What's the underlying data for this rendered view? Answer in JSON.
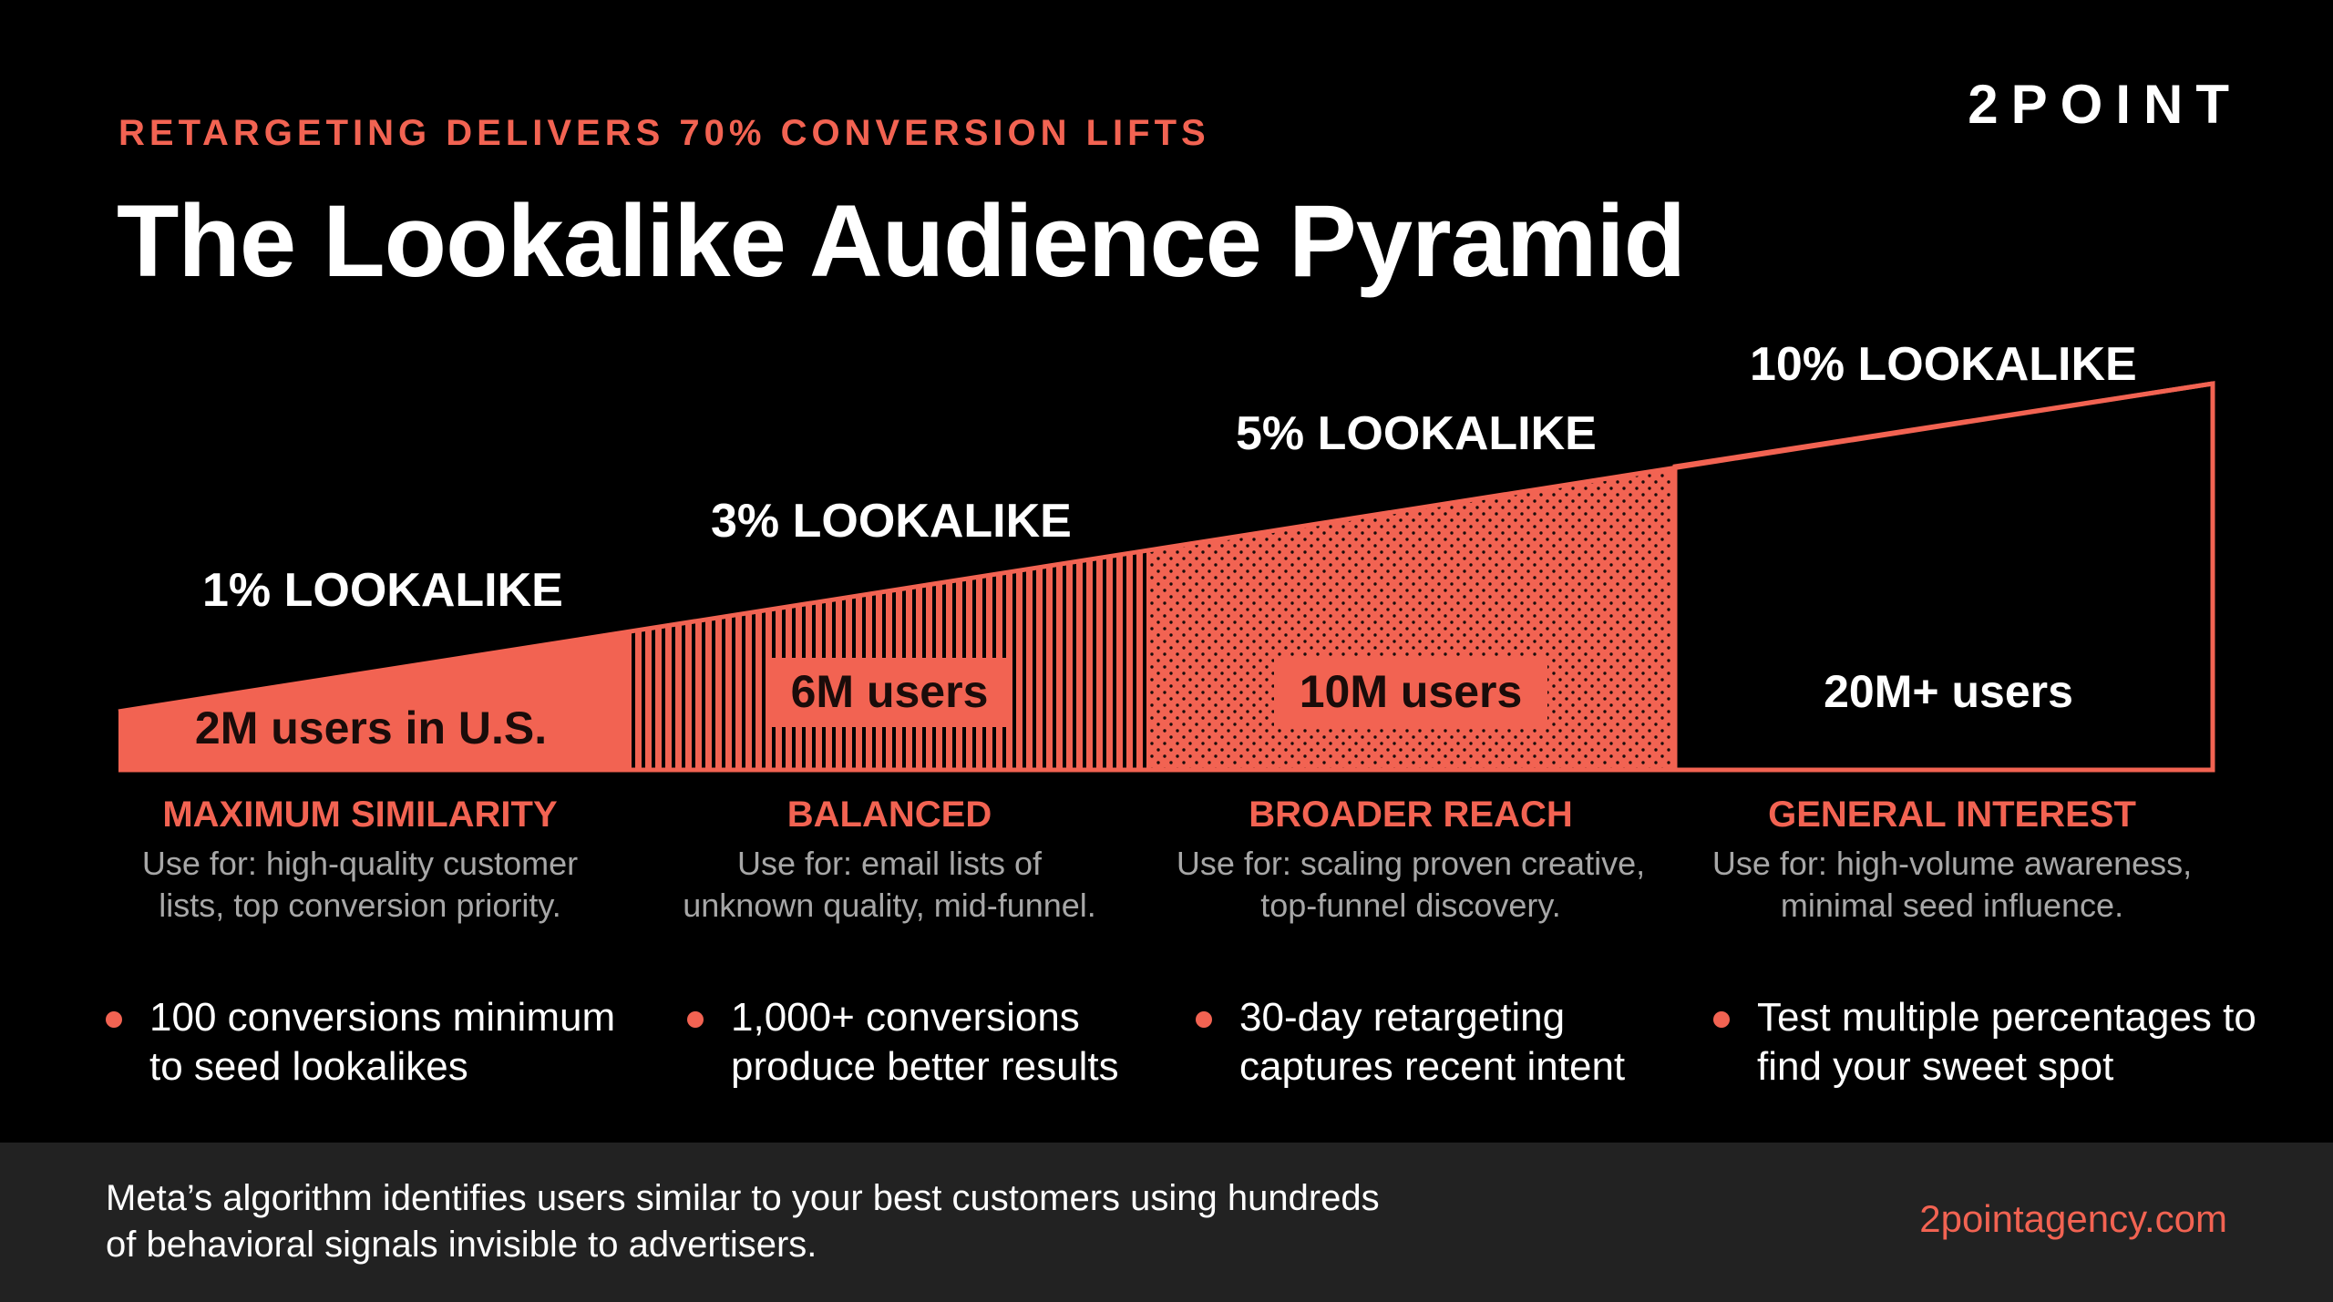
{
  "header": {
    "eyebrow": "RETARGETING DELIVERS 70% CONVERSION LIFTS",
    "title": "The Lookalike Audience Pyramid",
    "logo": "2POINT"
  },
  "tiers": [
    {
      "label": "1% LOOKALIKE",
      "users": "2M users in U.S.",
      "heading": "MAXIMUM SIMILARITY",
      "description": "Use for: high-quality customer lists, top conversion priority.",
      "bullet": "100 conversions minimum to seed lookalikes"
    },
    {
      "label": "3% LOOKALIKE",
      "users": "6M users",
      "heading": "BALANCED",
      "description": "Use for: email lists of unknown quality, mid-funnel.",
      "bullet": "1,000+ conversions produce better results"
    },
    {
      "label": "5% LOOKALIKE",
      "users": "10M users",
      "heading": "BROADER REACH",
      "description": "Use for: scaling proven creative, top-funnel discovery.",
      "bullet": "30-day retargeting captures recent intent"
    },
    {
      "label": "10% LOOKALIKE",
      "users": "20M+ users",
      "heading": "GENERAL INTEREST",
      "description": "Use for: high-volume awareness, minimal seed influence.",
      "bullet": "Test multiple percentages to find your sweet spot"
    }
  ],
  "footer": {
    "text": "Meta’s algorithm identifies users similar to your best customers using hundreds of behavioral signals invisible to advertisers.",
    "url": "2pointagency.com"
  },
  "colors": {
    "accent": "#f26352",
    "background": "#000000",
    "footer_bg": "#222222"
  }
}
